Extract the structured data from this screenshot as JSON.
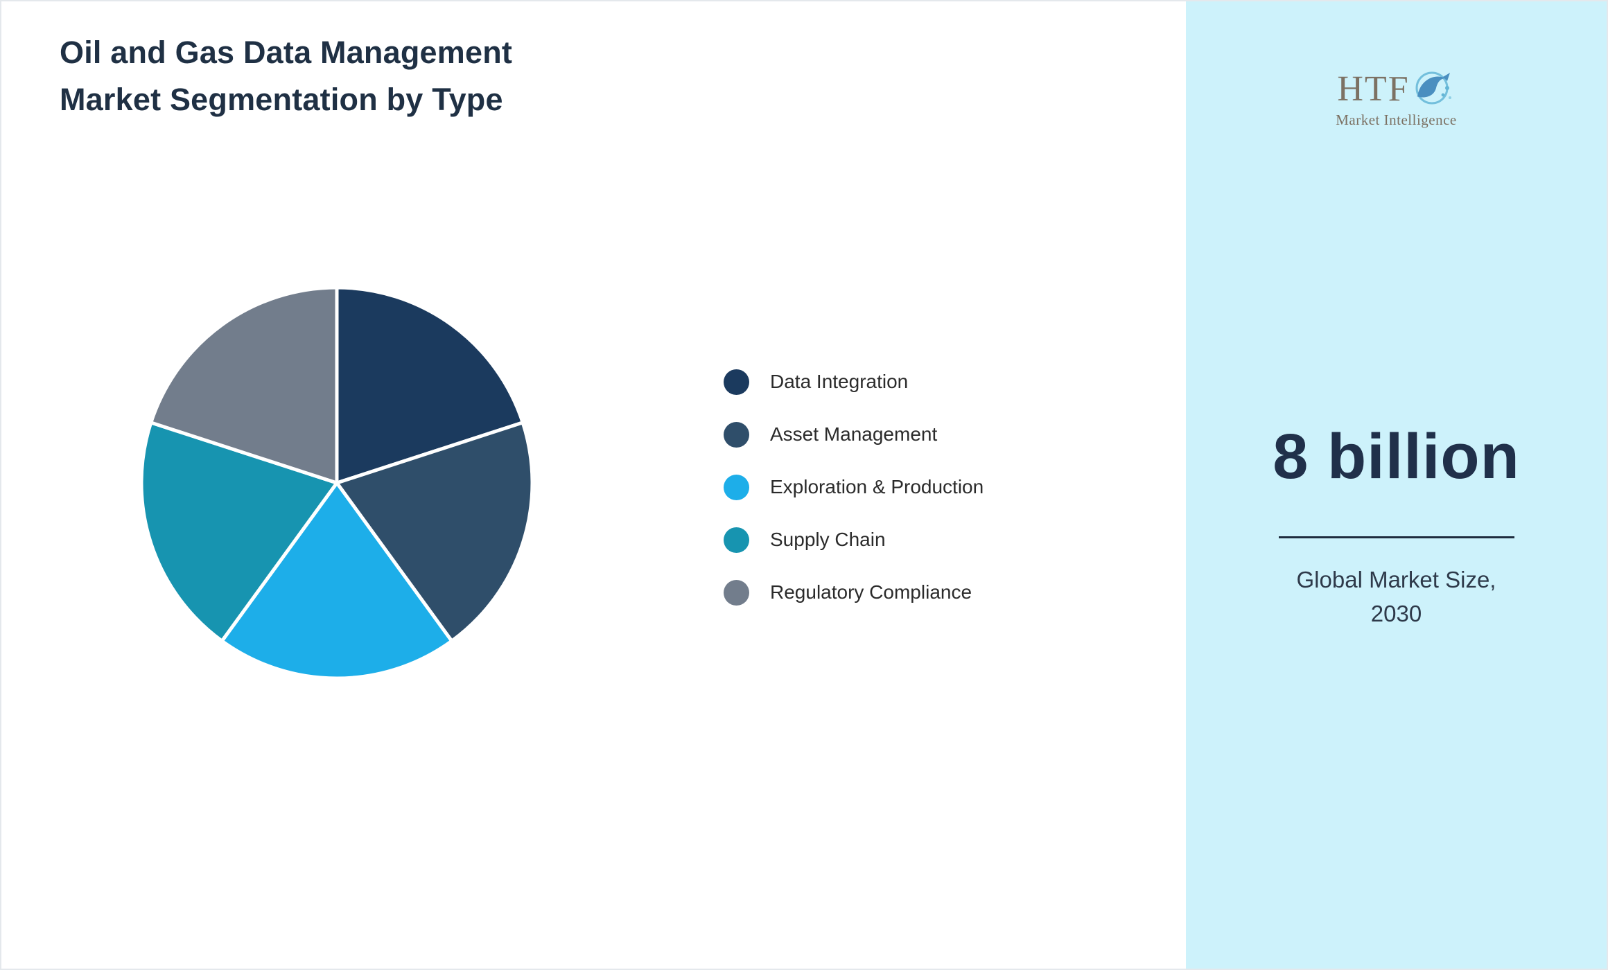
{
  "header": {
    "title": "Oil and Gas Data Management\nMarket Segmentation by Type"
  },
  "chart_data": {
    "type": "pie",
    "title": "Oil and Gas Data Management Market Segmentation by Type",
    "categories": [
      "Data Integration",
      "Asset Management",
      "Exploration & Production",
      "Supply Chain",
      "Regulatory Compliance"
    ],
    "values": [
      20,
      20,
      20,
      20,
      20
    ],
    "units": "percent",
    "colors": [
      "#1b3a5e",
      "#2f4e6a",
      "#1daee9",
      "#1794b0",
      "#727d8c"
    ],
    "start_angle_deg": 0,
    "direction": "clockwise",
    "legend_position": "right",
    "slice_border_color": "#ffffff"
  },
  "sidebar": {
    "background": "#cdf2fb",
    "logo": {
      "text": "HTF",
      "subtext": "Market Intelligence",
      "dolphin_color": "#4a8fc0",
      "splash_color": "#63b6d6"
    },
    "market_size_value": "8 billion",
    "market_size_label": "Global Market Size,\n2030"
  }
}
